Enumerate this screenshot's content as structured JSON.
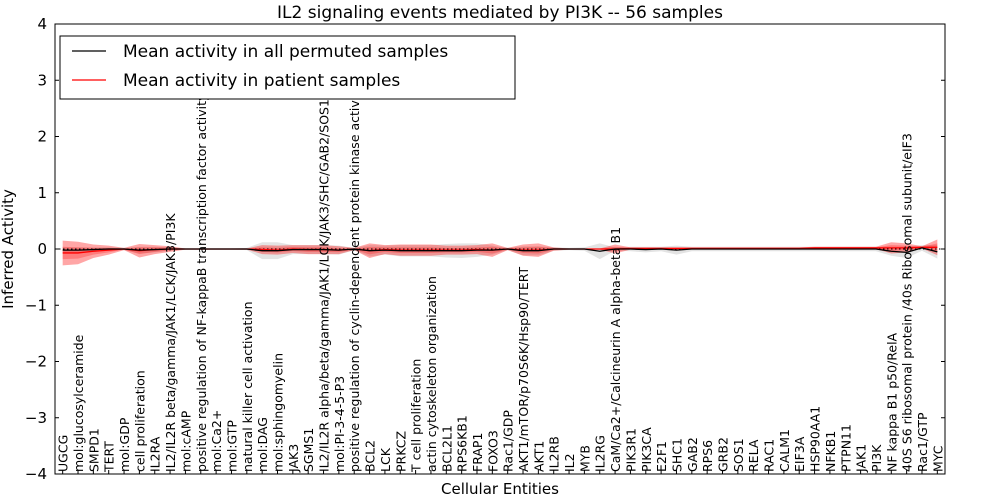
{
  "chart_data": {
    "type": "line",
    "title": "IL2 signaling events mediated by PI3K -- 56 samples",
    "xlabel": "Cellular Entities",
    "ylabel": "Inferred Activity",
    "ylim": [
      -4,
      4
    ],
    "yticks": [
      -4,
      -3,
      -2,
      -1,
      0,
      1,
      2,
      3,
      4
    ],
    "ytick_labels": [
      "−4",
      "−3",
      "−2",
      "−1",
      "0",
      "1",
      "2",
      "3",
      "4"
    ],
    "legend_position": "top-left",
    "categories": [
      "UGCG",
      "mol:glucosylceramide",
      "SMPD1",
      "TERT",
      "mol:GDP",
      "cell proliferation",
      "IL2RA",
      "IL2/IL2R beta/gamma/JAK1/LCK/JAK3/PI3K",
      "mol:cAMP",
      "positive regulation of NF-kappaB transcription factor activity",
      "mol:Ca2+",
      "mol:GTP",
      "natural killer cell activation",
      "mol:DAG",
      "mol:sphingomyelin",
      "JAK3",
      "SGMS1",
      "IL2/IL2R alpha/beta/gamma/JAK1/LCK/JAK3/SHC/GAB2/SOS1",
      "mol:PI-3-4-5-P3",
      "positive regulation of cyclin-dependent protein kinase activity",
      "BCL2",
      "LCK",
      "PRKCZ",
      "T cell proliferation",
      "actin cytoskeleton organization",
      "BCL2L1",
      "RPS6KB1",
      "FRAP1",
      "FOXO3",
      "Rac1/GDP",
      "AKT1/mTOR/p70S6K/Hsp90/TERT",
      "AKT1",
      "IL2RB",
      "IL2",
      "MYB",
      "IL2RG",
      "CaM/Ca2+/Calcineurin A alpha-beta B1",
      "PIK3R1",
      "PIK3CA",
      "E2F1",
      "SHC1",
      "GAB2",
      "RPS6",
      "GRB2",
      "SOS1",
      "RELA",
      "RAC1",
      "CALM1",
      "EIF3A",
      "HSP90AA1",
      "NFKB1",
      "PTPN11",
      "JAK1",
      "PI3K",
      "NF kappa B1 p50/RelA",
      "40S S6 ribosomal protein /40s Ribosomal subunit/eIF3",
      "Rac1/GTP",
      "MYC"
    ],
    "series": [
      {
        "name": "Mean activity in all permuted samples",
        "color": "#000000",
        "band_color": "#cccccc",
        "values": [
          -0.02,
          -0.02,
          -0.01,
          0,
          0,
          -0.02,
          -0.01,
          0,
          0,
          0,
          0,
          0,
          0,
          -0.03,
          -0.03,
          -0.01,
          -0.01,
          -0.01,
          -0.02,
          0,
          -0.03,
          -0.02,
          -0.03,
          -0.03,
          -0.03,
          -0.03,
          -0.03,
          -0.02,
          -0.02,
          0,
          -0.03,
          -0.03,
          0,
          0,
          0,
          -0.04,
          0,
          0,
          -0.01,
          0,
          -0.02,
          0,
          0,
          0,
          0,
          0,
          0,
          0,
          0,
          0,
          0,
          0,
          0,
          0,
          -0.04,
          -0.06,
          0.02,
          -0.05
        ],
        "spread": [
          0.05,
          0.05,
          0.04,
          0.03,
          0.02,
          0.06,
          0.05,
          0.03,
          0.01,
          0.01,
          0.01,
          0.01,
          0.02,
          0.15,
          0.15,
          0.08,
          0.08,
          0.08,
          0.08,
          0.02,
          0.1,
          0.08,
          0.1,
          0.1,
          0.1,
          0.12,
          0.13,
          0.12,
          0.08,
          0.02,
          0.08,
          0.08,
          0.03,
          0.02,
          0.03,
          0.14,
          0.03,
          0.04,
          0.05,
          0.04,
          0.08,
          0.04,
          0.04,
          0.04,
          0.04,
          0.04,
          0.04,
          0.04,
          0.04,
          0.04,
          0.04,
          0.04,
          0.04,
          0.04,
          0.08,
          0.1,
          0.05,
          0.12
        ]
      },
      {
        "name": "Mean activity in patient samples",
        "color": "#ff0000",
        "band_color": "#ff0000",
        "values": [
          -0.07,
          -0.07,
          -0.04,
          -0.02,
          0,
          -0.03,
          -0.01,
          0,
          0,
          0,
          0,
          0,
          0,
          -0.01,
          -0.02,
          0,
          -0.01,
          -0.01,
          -0.02,
          0,
          -0.03,
          -0.01,
          -0.02,
          -0.02,
          -0.02,
          -0.02,
          -0.02,
          -0.01,
          -0.02,
          0,
          -0.02,
          -0.02,
          0,
          0,
          0,
          0,
          0,
          0.01,
          0.01,
          0.01,
          0.01,
          0.01,
          0.01,
          0.01,
          0.01,
          0.01,
          0.01,
          0.01,
          0.01,
          0.02,
          0.02,
          0.02,
          0.02,
          0.02,
          0.02,
          0.02,
          0.03,
          0.03
        ],
        "spread": [
          0.22,
          0.2,
          0.12,
          0.08,
          0.02,
          0.12,
          0.08,
          0.05,
          0.01,
          0.01,
          0.01,
          0.01,
          0.01,
          0.08,
          0.08,
          0.07,
          0.08,
          0.08,
          0.07,
          0.02,
          0.13,
          0.08,
          0.1,
          0.1,
          0.1,
          0.08,
          0.08,
          0.08,
          0.12,
          0.02,
          0.1,
          0.12,
          0.03,
          0.01,
          0.01,
          0.01,
          0.08,
          0.02,
          0.02,
          0.02,
          0.02,
          0.02,
          0.02,
          0.02,
          0.02,
          0.02,
          0.02,
          0.02,
          0.02,
          0.02,
          0.02,
          0.02,
          0.02,
          0.02,
          0.1,
          0.08,
          0.02,
          0.14
        ]
      }
    ]
  }
}
